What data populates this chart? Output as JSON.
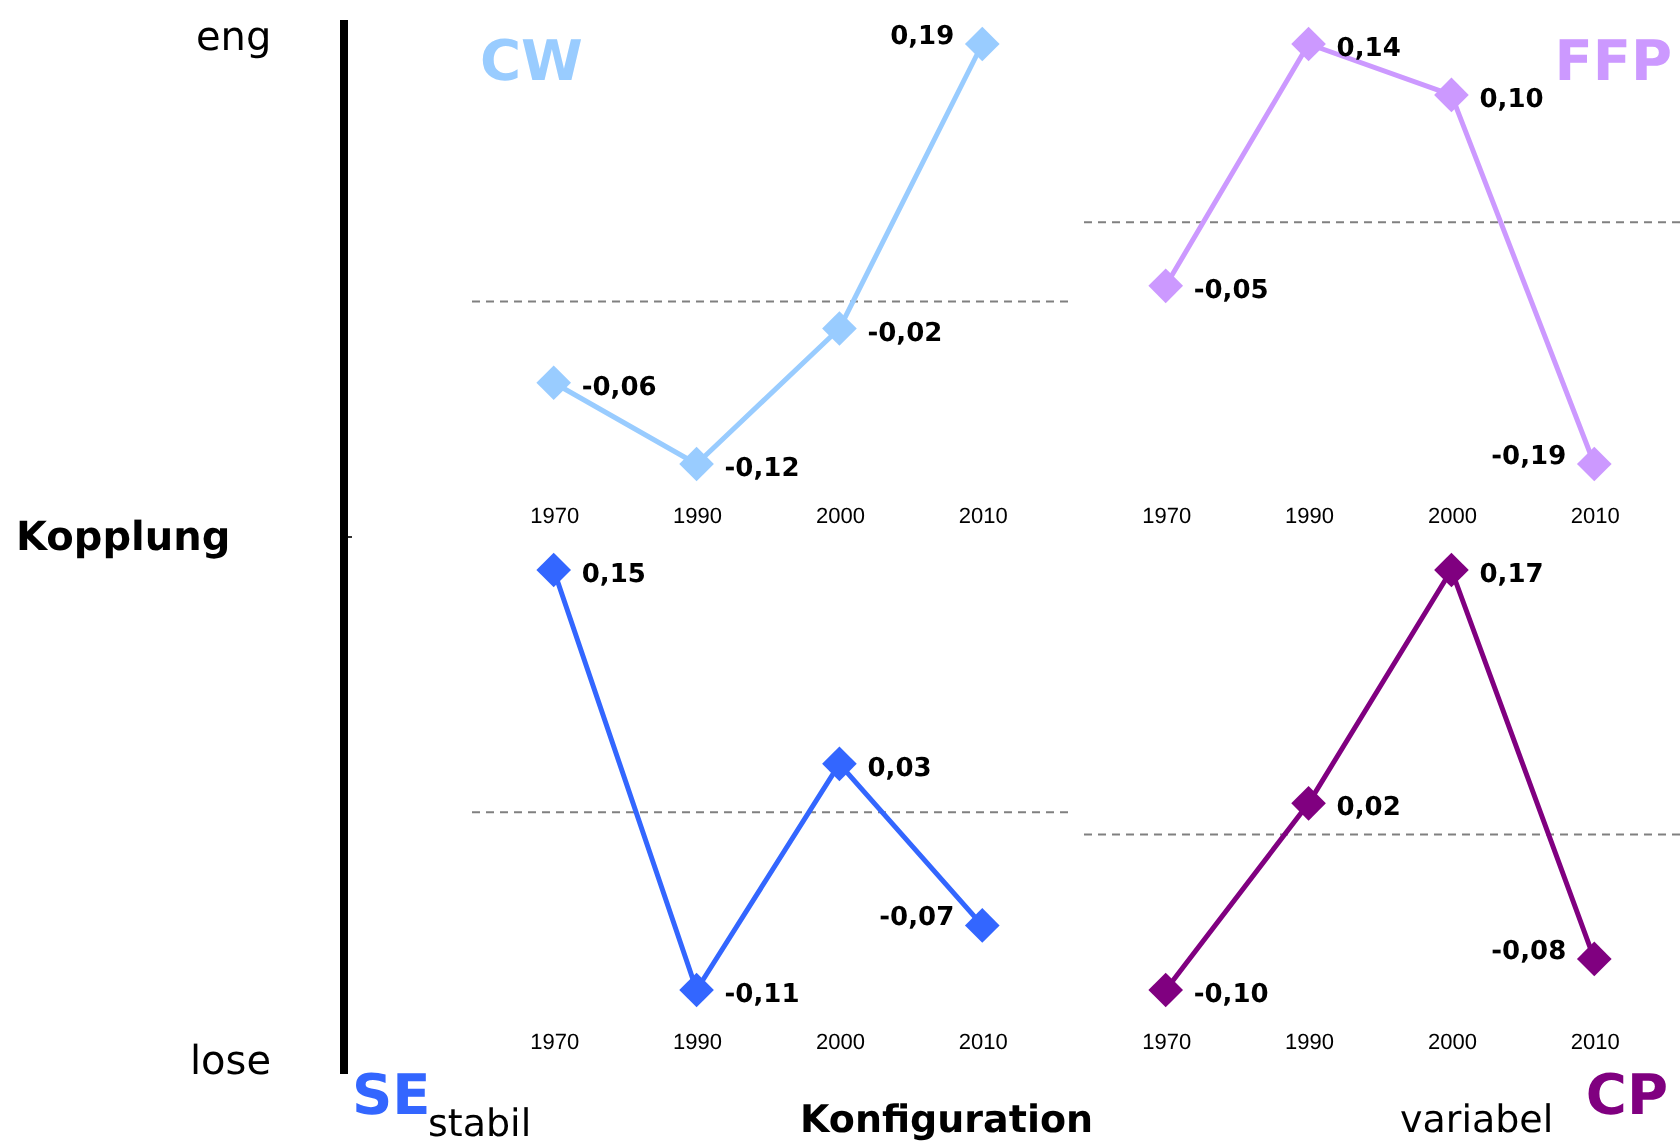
{
  "chart_data": [
    {
      "type": "line",
      "title": "CW",
      "categories": [
        "1970",
        "1990",
        "2000",
        "2010"
      ],
      "series": [
        {
          "color": "#99ccff",
          "values": [
            -0.06,
            -0.12,
            -0.02,
            0.19
          ],
          "value_labels": [
            "-0,06",
            "-0,12",
            "-0,02",
            "0,19"
          ]
        }
      ],
      "ref_lines": [
        {
          "axis": "y",
          "value": 0,
          "color": "#808080",
          "line_style": "dashed"
        }
      ],
      "marker": "diamond",
      "tick_labels": "x",
      "annotations": [
        "eng"
      ]
    },
    {
      "type": "line",
      "title": "FFP",
      "categories": [
        "1970",
        "1990",
        "2000",
        "2010"
      ],
      "series": [
        {
          "color": "#cc99ff",
          "values": [
            -0.05,
            0.14,
            0.1,
            -0.19
          ],
          "value_labels": [
            "-0,05",
            "0,14",
            "0,10",
            "-0,19"
          ]
        }
      ],
      "ref_lines": [
        {
          "axis": "y",
          "value": 0,
          "color": "#808080",
          "line_style": "dashed"
        }
      ],
      "marker": "diamond",
      "tick_labels": "x"
    },
    {
      "type": "line",
      "title": "SE",
      "categories": [
        "1970",
        "1990",
        "2000",
        "2010"
      ],
      "series": [
        {
          "color": "#3366ff",
          "values": [
            0.15,
            -0.11,
            0.03,
            -0.07
          ],
          "value_labels": [
            "0,15",
            "-0,11",
            "0,03",
            "-0,07"
          ]
        }
      ],
      "ref_lines": [
        {
          "axis": "y",
          "value": 0,
          "color": "#808080",
          "line_style": "dashed"
        }
      ],
      "marker": "diamond",
      "tick_labels": "x",
      "annotations": [
        "Kopplung",
        "lose",
        "stabil",
        "Konfiguration"
      ]
    },
    {
      "type": "line",
      "title": "CP",
      "categories": [
        "1970",
        "1990",
        "2000",
        "2010"
      ],
      "series": [
        {
          "color": "#800080",
          "values": [
            -0.1,
            0.02,
            0.17,
            -0.08
          ],
          "value_labels": [
            "-0,10",
            "0,02",
            "0,17",
            "-0,08"
          ]
        }
      ],
      "ref_lines": [
        {
          "axis": "y",
          "value": 0,
          "color": "#808080",
          "line_style": "dashed"
        }
      ],
      "marker": "diamond",
      "tick_labels": "x",
      "annotations": [
        "variabel"
      ]
    }
  ]
}
